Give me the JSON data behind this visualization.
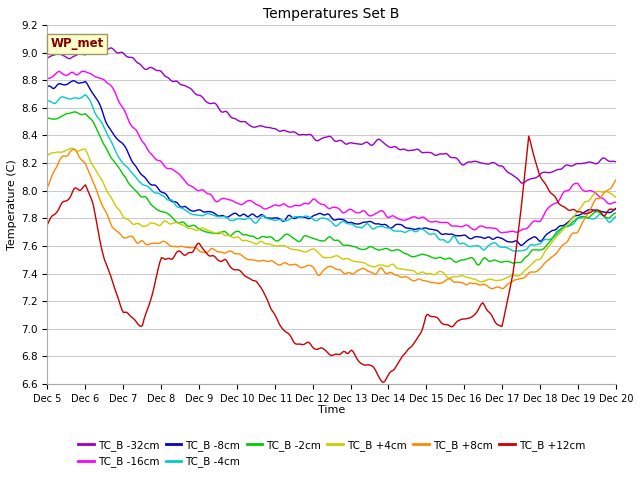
{
  "title": "Temperatures Set B",
  "xlabel": "Time",
  "ylabel": "Temperature (C)",
  "ylim": [
    6.6,
    9.2
  ],
  "xlim": [
    0,
    359
  ],
  "xtick_labels": [
    "Dec 5",
    "Dec 6",
    "Dec 7",
    "Dec 8",
    "Dec 9",
    "Dec 10",
    "Dec 11",
    "Dec 12",
    "Dec 13",
    "Dec 14",
    "Dec 15",
    "Dec 16",
    "Dec 17",
    "Dec 18",
    "Dec 19",
    "Dec 20"
  ],
  "annotation_text": "WP_met",
  "annotation_box_color": "#ffffcc",
  "annotation_text_color": "#800000",
  "background_color": "#ffffff",
  "plot_bg_color": "#ffffff",
  "grid_color": "#dddddd",
  "series": [
    {
      "label": "TC_B -32cm",
      "color": "#9900cc"
    },
    {
      "label": "TC_B -16cm",
      "color": "#ff00ff"
    },
    {
      "label": "TC_B -8cm",
      "color": "#0000cc"
    },
    {
      "label": "TC_B -4cm",
      "color": "#00cccc"
    },
    {
      "label": "TC_B -2cm",
      "color": "#00cc00"
    },
    {
      "label": "TC_B +4cm",
      "color": "#cccc00"
    },
    {
      "label": "TC_B +8cm",
      "color": "#ff8800"
    },
    {
      "label": "TC_B +12cm",
      "color": "#cc0000"
    }
  ]
}
